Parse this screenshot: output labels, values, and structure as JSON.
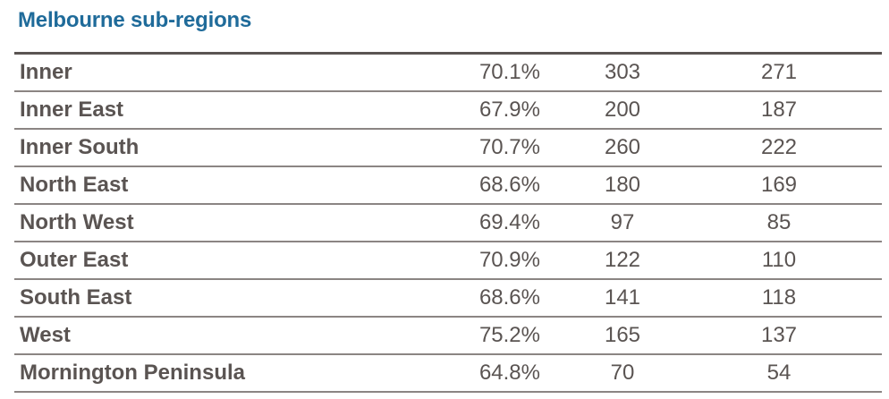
{
  "title": "Melbourne sub-regions",
  "rows": [
    {
      "name": "Inner",
      "pct": "70.1%",
      "n1": "303",
      "n2": "271"
    },
    {
      "name": "Inner East",
      "pct": "67.9%",
      "n1": "200",
      "n2": "187"
    },
    {
      "name": "Inner South",
      "pct": "70.7%",
      "n1": "260",
      "n2": "222"
    },
    {
      "name": "North East",
      "pct": "68.6%",
      "n1": "180",
      "n2": "169"
    },
    {
      "name": "North West",
      "pct": "69.4%",
      "n1": "97",
      "n2": "85"
    },
    {
      "name": "Outer East",
      "pct": "70.9%",
      "n1": "122",
      "n2": "110"
    },
    {
      "name": "South East",
      "pct": "68.6%",
      "n1": "141",
      "n2": "118"
    },
    {
      "name": "West",
      "pct": "75.2%",
      "n1": "165",
      "n2": "137"
    },
    {
      "name": "Mornington Peninsula",
      "pct": "64.8%",
      "n1": "70",
      "n2": "54"
    }
  ],
  "colors": {
    "title": "#1f6b9a",
    "text": "#5a5452",
    "rule": "#8b8583"
  }
}
